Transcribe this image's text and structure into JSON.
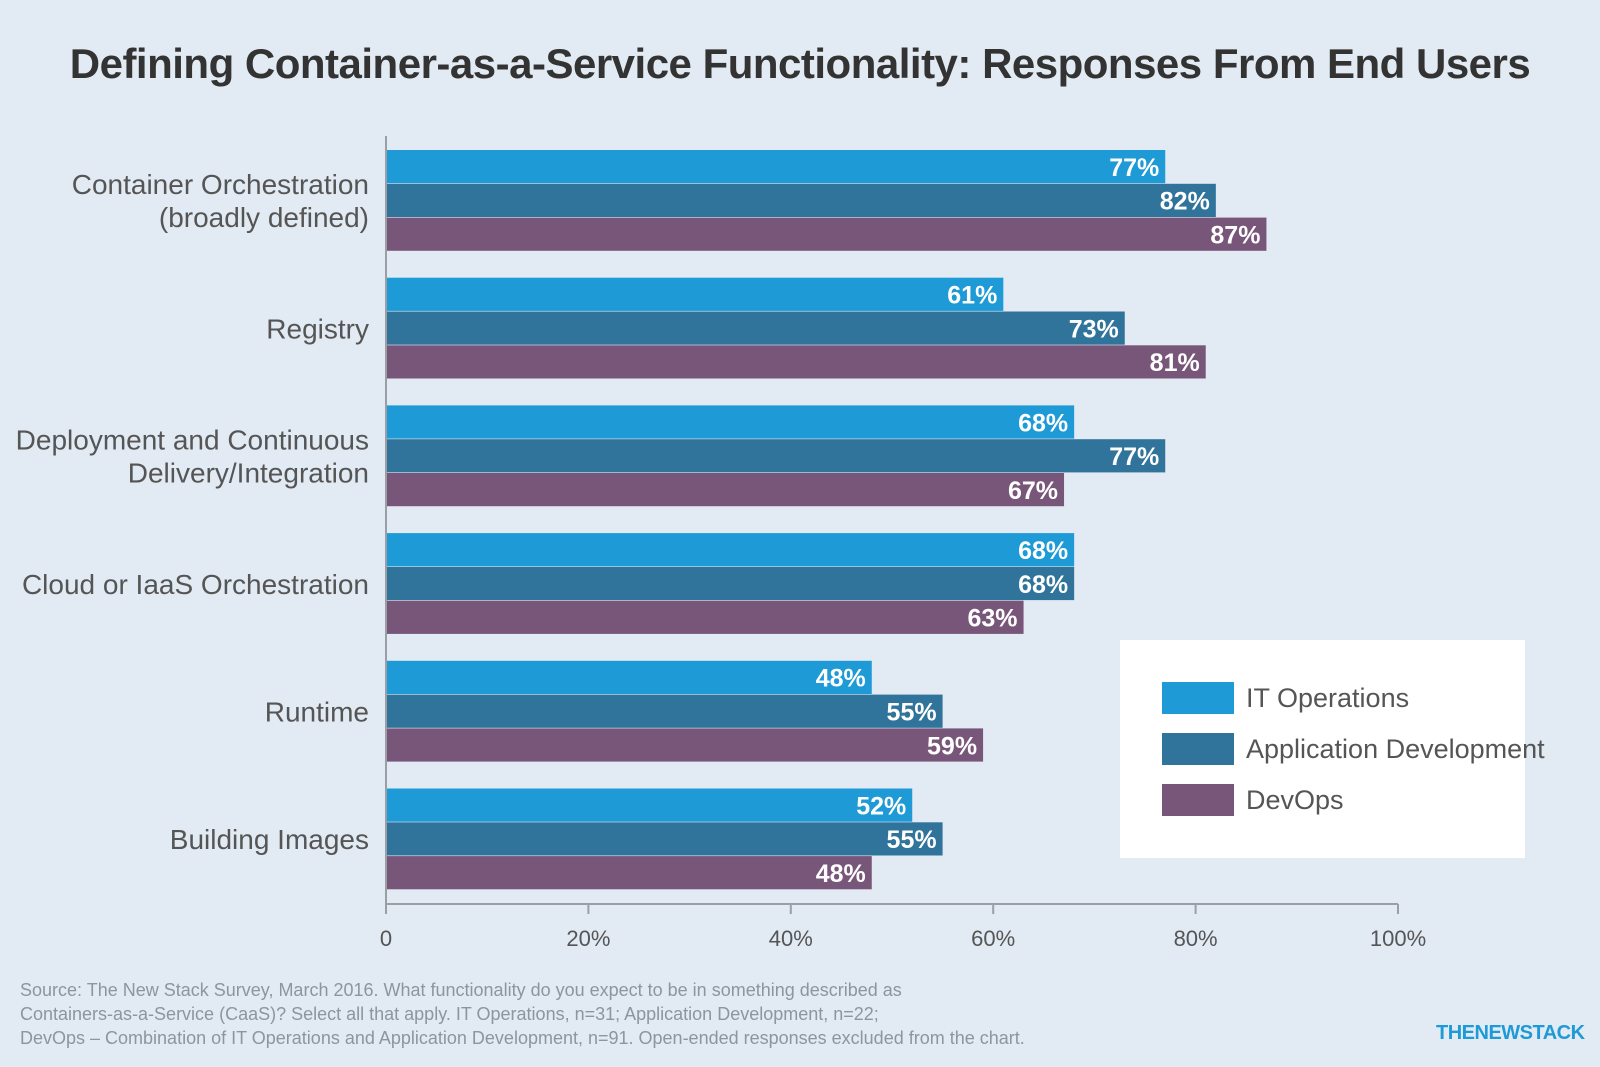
{
  "title": "Defining Container-as-a-Service Functionality: Responses From End Users",
  "chart_data": {
    "type": "bar",
    "orientation": "horizontal",
    "categories": [
      [
        "Container Orchestration",
        "(broadly defined)"
      ],
      [
        "Registry"
      ],
      [
        "Deployment and Continuous",
        "Delivery/Integration"
      ],
      [
        "Cloud or IaaS Orchestration"
      ],
      [
        "Runtime"
      ],
      [
        "Building Images"
      ]
    ],
    "series": [
      {
        "name": "IT Operations",
        "color": "#1e9ad6",
        "values": [
          77,
          61,
          68,
          68,
          48,
          52
        ]
      },
      {
        "name": "Application Development",
        "color": "#31749b",
        "values": [
          82,
          73,
          77,
          68,
          55,
          55
        ]
      },
      {
        "name": "DevOps",
        "color": "#785679",
        "values": [
          87,
          81,
          67,
          63,
          59,
          48
        ]
      }
    ],
    "value_suffix": "%",
    "xlim": [
      0,
      100
    ],
    "x_ticks": [
      "0",
      "20%",
      "40%",
      "60%",
      "80%",
      "100%"
    ],
    "legend_position": "bottom-right",
    "grid": false
  },
  "source_lines": [
    "Source: The New Stack Survey, March 2016. What functionality do you expect to be in something described as",
    "Containers-as-a-Service (CaaS)? Select all that apply. IT Operations, n=31; Application Development, n=22;",
    "DevOps – Combination of IT Operations and Application Development, n=91. Open-ended responses excluded from the chart."
  ],
  "brand": "THENEWSTACK",
  "colors": {
    "background": "#e2eaf3",
    "axis": "#9a9fa6"
  }
}
